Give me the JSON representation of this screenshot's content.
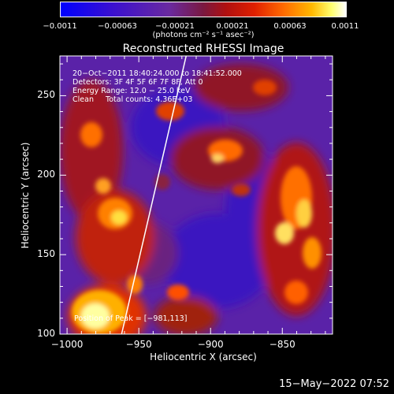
{
  "colorbar": {
    "ticks": [
      "−0.0011",
      "−0.00063",
      "−0.00021",
      "0.00021",
      "0.00063",
      "0.0011"
    ],
    "unit": "(photons cm⁻² s⁻¹ asec⁻²)",
    "min": -0.0011,
    "max": 0.0011,
    "colors": [
      "#0000ff",
      "#3a00c8",
      "#60209a",
      "#803070",
      "#a01020",
      "#e02000",
      "#ff6000",
      "#ffb000",
      "#ffff80",
      "#ffffff"
    ]
  },
  "annotations": {
    "line1": "20−Oct−2011 18:40:24.000 to 18:41:52.000",
    "line2": "Detectors: 3F 4F 5F 6F 7F 8F, Att 0",
    "line3": "Energy Range: 12.0 − 25.0 keV",
    "line4": "Clean     Total counts: 4.36E+03",
    "peak": "Position of Peak = [−981,113]"
  },
  "footer": "15−May−2022 07:52",
  "chart_data": {
    "type": "heatmap",
    "title": "Reconstructed RHESSI Image",
    "xlabel": "Heliocentric X (arcsec)",
    "ylabel": "Heliocentric Y (arcsec)",
    "xlim": [
      -1005,
      -815
    ],
    "ylim": [
      100,
      275
    ],
    "xticks": [
      -1000,
      -950,
      -900,
      -850
    ],
    "xtick_labels": [
      "−1000",
      "−950",
      "−900",
      "−850"
    ],
    "yticks": [
      100,
      150,
      200,
      250
    ],
    "ytick_labels": [
      "100",
      "150",
      "200",
      "250"
    ],
    "peak_position": [
      -981,
      113
    ],
    "limb_line": [
      [
        -962,
        100
      ],
      [
        -917,
        275
      ]
    ]
  }
}
